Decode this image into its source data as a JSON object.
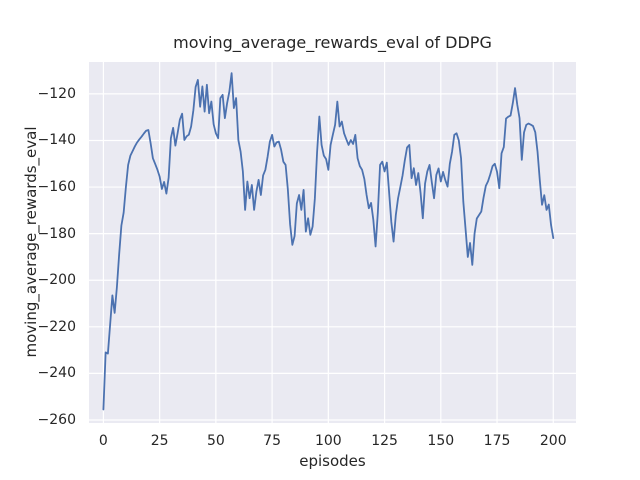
{
  "figure": {
    "background": "#ffffff"
  },
  "chart_data": {
    "type": "line",
    "title": "moving_average_rewards_eval of DDPG",
    "xlabel": "episodes",
    "ylabel": "moving_average_rewards_eval",
    "x_start": 0,
    "x_step": 1,
    "values": [
      -255.5,
      -231.0,
      -231.5,
      -219.0,
      -206.5,
      -214.0,
      -203.0,
      -189.0,
      -176.5,
      -171.0,
      -160.0,
      -150.5,
      -146.5,
      -144.5,
      -142.5,
      -140.8,
      -139.5,
      -138.3,
      -137.0,
      -135.8,
      -135.5,
      -141.2,
      -147.6,
      -150.0,
      -152.5,
      -155.5,
      -160.8,
      -157.8,
      -162.8,
      -156.0,
      -139.0,
      -134.6,
      -142.2,
      -136.8,
      -131.0,
      -128.5,
      -139.8,
      -138.2,
      -137.5,
      -134.0,
      -127.0,
      -117.0,
      -114.0,
      -125.5,
      -116.8,
      -127.6,
      -116.1,
      -128.3,
      -123.3,
      -133.0,
      -136.9,
      -139.0,
      -121.8,
      -120.4,
      -130.4,
      -124.0,
      -119.0,
      -111.1,
      -126.1,
      -121.8,
      -139.8,
      -144.8,
      -153.3,
      -169.8,
      -157.6,
      -164.8,
      -159.1,
      -169.8,
      -162.0,
      -156.9,
      -163.4,
      -155.0,
      -152.6,
      -147.0,
      -140.5,
      -137.6,
      -142.6,
      -140.8,
      -140.5,
      -144.0,
      -149.1,
      -150.5,
      -161.0,
      -176.0,
      -184.8,
      -181.0,
      -167.0,
      -163.4,
      -169.8,
      -161.2,
      -179.1,
      -173.4,
      -180.5,
      -177.0,
      -165.0,
      -145.0,
      -129.7,
      -141.9,
      -146.5,
      -148.0,
      -152.6,
      -141.9,
      -137.5,
      -133.3,
      -123.3,
      -134.0,
      -131.9,
      -136.9,
      -139.5,
      -141.9,
      -139.8,
      -141.5,
      -137.6,
      -147.6,
      -151.0,
      -152.6,
      -156.5,
      -163.4,
      -169.1,
      -166.8,
      -174.1,
      -185.5,
      -171.0,
      -150.5,
      -149.1,
      -153.3,
      -149.5,
      -162.0,
      -175.0,
      -183.4,
      -172.0,
      -164.8,
      -160.0,
      -155.0,
      -148.5,
      -143.0,
      -141.9,
      -156.2,
      -151.9,
      -159.1,
      -154.0,
      -162.5,
      -173.4,
      -158.5,
      -153.3,
      -150.5,
      -158.0,
      -164.8,
      -154.8,
      -152.0,
      -157.6,
      -153.5,
      -157.0,
      -159.8,
      -150.0,
      -144.8,
      -137.6,
      -136.9,
      -140.0,
      -147.6,
      -166.2,
      -178.0,
      -190.0,
      -184.0,
      -193.4,
      -180.0,
      -173.5,
      -172.0,
      -170.5,
      -164.5,
      -159.5,
      -157.5,
      -154.5,
      -151.0,
      -150.0,
      -153.5,
      -160.5,
      -145.5,
      -142.8,
      -130.6,
      -129.8,
      -129.3,
      -124.0,
      -117.5,
      -124.7,
      -130.4,
      -148.3,
      -136.5,
      -133.3,
      -132.7,
      -133.2,
      -133.8,
      -136.5,
      -144.8,
      -157.0,
      -167.6,
      -163.5,
      -169.8,
      -167.5,
      -176.2,
      -181.9
    ],
    "xticks": [
      0,
      25,
      50,
      75,
      100,
      125,
      150,
      175,
      200
    ],
    "xtick_labels": [
      "0",
      "25",
      "50",
      "75",
      "100",
      "125",
      "150",
      "175",
      "200"
    ],
    "yticks": [
      -120,
      -140,
      -160,
      -180,
      -200,
      -220,
      -240,
      -260
    ],
    "ytick_labels": [
      "−120",
      "−140",
      "−160",
      "−180",
      "−200",
      "−220",
      "−240",
      "−260"
    ],
    "xlim": [
      -6.4,
      210.1
    ],
    "ylim": [
      -261.3,
      -106.3
    ],
    "grid": true,
    "legend_position": "none",
    "style": {
      "plot_bg": "#eaeaf2",
      "grid_color": "#ffffff",
      "line_color": "#4c72b0",
      "text_color": "#262626",
      "line_width": 1.8
    }
  }
}
